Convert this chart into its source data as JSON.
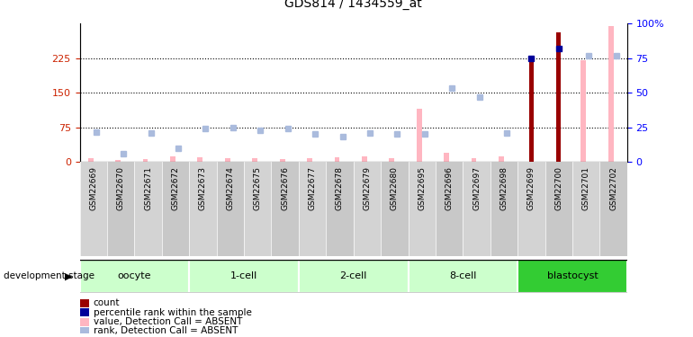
{
  "title": "GDS814 / 1434559_at",
  "samples": [
    "GSM22669",
    "GSM22670",
    "GSM22671",
    "GSM22672",
    "GSM22673",
    "GSM22674",
    "GSM22675",
    "GSM22676",
    "GSM22677",
    "GSM22678",
    "GSM22679",
    "GSM22680",
    "GSM22695",
    "GSM22696",
    "GSM22697",
    "GSM22698",
    "GSM22699",
    "GSM22700",
    "GSM22701",
    "GSM22702"
  ],
  "value_absent": [
    8,
    3,
    5,
    12,
    10,
    8,
    7,
    6,
    8,
    10,
    12,
    8,
    115,
    20,
    8,
    12,
    0,
    0,
    220,
    295
  ],
  "rank_absent": [
    65,
    18,
    62,
    30,
    72,
    75,
    68,
    72,
    60,
    55,
    63,
    60,
    60,
    160,
    140,
    62,
    0,
    0,
    230,
    230
  ],
  "count": [
    0,
    0,
    0,
    0,
    0,
    0,
    0,
    0,
    0,
    0,
    0,
    0,
    0,
    0,
    0,
    0,
    230,
    280,
    0,
    0
  ],
  "rank_present": [
    0,
    0,
    0,
    0,
    0,
    0,
    0,
    0,
    0,
    0,
    0,
    0,
    0,
    0,
    0,
    0,
    225,
    245,
    0,
    0
  ],
  "stages": [
    {
      "label": "oocyte",
      "start": 0,
      "end": 4,
      "color": "#CCFFCC"
    },
    {
      "label": "1-cell",
      "start": 4,
      "end": 8,
      "color": "#CCFFCC"
    },
    {
      "label": "2-cell",
      "start": 8,
      "end": 12,
      "color": "#CCFFCC"
    },
    {
      "label": "8-cell",
      "start": 12,
      "end": 16,
      "color": "#CCFFCC"
    },
    {
      "label": "blastocyst",
      "start": 16,
      "end": 20,
      "color": "#33CC33"
    }
  ],
  "ylim_left": [
    0,
    300
  ],
  "ylim_right": [
    0,
    100
  ],
  "yticks_left": [
    0,
    75,
    150,
    225
  ],
  "yticks_right": [
    0,
    25,
    50,
    75,
    100
  ],
  "color_count": "#990000",
  "color_rank_present": "#000099",
  "color_value_absent": "#FFB6C1",
  "color_rank_absent": "#AABBDD",
  "legend_items": [
    {
      "color": "#990000",
      "label": "count"
    },
    {
      "color": "#000099",
      "label": "percentile rank within the sample"
    },
    {
      "color": "#FFB6C1",
      "label": "value, Detection Call = ABSENT"
    },
    {
      "color": "#AABBDD",
      "label": "rank, Detection Call = ABSENT"
    }
  ]
}
